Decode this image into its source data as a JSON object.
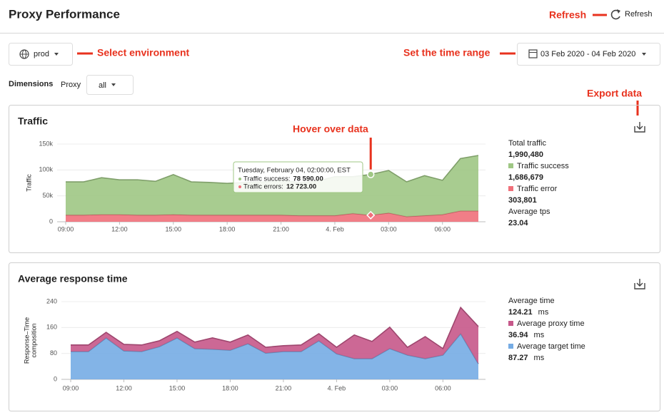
{
  "header": {
    "title": "Proxy Performance",
    "refresh": "Refresh"
  },
  "controls": {
    "environment": "prod",
    "date_range": "03 Feb 2020 - 04 Feb 2020",
    "dimensions_label": "Dimensions",
    "proxy_label": "Proxy",
    "proxy_value": "all"
  },
  "annotations": {
    "refresh": "Refresh",
    "environment": "Select environment",
    "time_range": "Set the time range",
    "hover": "Hover over data",
    "export": "Export data"
  },
  "chart_data": [
    {
      "type": "area",
      "title": "Traffic",
      "y_label": [
        "Traffic"
      ],
      "categories": [
        "09:00",
        null,
        null,
        "12:00",
        null,
        null,
        "15:00",
        null,
        null,
        "18:00",
        null,
        null,
        "21:00",
        null,
        null,
        "4. Feb",
        null,
        null,
        "03:00",
        null,
        null,
        "06:00",
        null,
        null
      ],
      "series": [
        {
          "name": "Traffic success",
          "color": "#9fc784",
          "values": [
            64000,
            64000,
            71000,
            67000,
            68000,
            65000,
            77000,
            64000,
            63000,
            61000,
            63000,
            64000,
            67000,
            64000,
            66000,
            75000,
            71000,
            78590,
            82000,
            67000,
            77000,
            66000,
            101000,
            107000
          ],
          "total": "1,686,679"
        },
        {
          "name": "Traffic error",
          "color": "#f0707a",
          "values": [
            13000,
            13000,
            14000,
            14000,
            13000,
            13000,
            14000,
            13000,
            13000,
            13000,
            13000,
            13000,
            13000,
            12000,
            12000,
            12000,
            16000,
            12723,
            17000,
            10000,
            12000,
            14000,
            21000,
            21000
          ],
          "total": "303,801"
        }
      ],
      "summary": {
        "label": "Total traffic",
        "value": "1,990,480"
      },
      "extra": {
        "label": "Average tps",
        "value": "23.04"
      },
      "tooltip": {
        "title": "Tuesday, February 04, 02:00:00, EST",
        "rows": [
          {
            "name": "Traffic success:",
            "value": "78 590.00"
          },
          {
            "name": "Traffic errors:",
            "value": "12 723.00"
          }
        ]
      },
      "ylim": [
        0,
        150000
      ],
      "yticks": [
        0,
        {
          "value": 50000,
          "label": "50k"
        },
        {
          "value": 100000,
          "label": "100k"
        },
        {
          "value": 150000,
          "label": "150k"
        }
      ],
      "grid": true
    },
    {
      "type": "area",
      "title": "Average response time",
      "y_label": [
        "Response–Time",
        "composition"
      ],
      "categories": [
        "09:00",
        null,
        null,
        "12:00",
        null,
        null,
        "15:00",
        null,
        null,
        "18:00",
        null,
        null,
        "21:00",
        null,
        null,
        "4. Feb",
        null,
        null,
        "03:00",
        null,
        null,
        "06:00",
        null,
        null
      ],
      "series": [
        {
          "name": "Average proxy time",
          "color": "#c6588a",
          "values": [
            20,
            20,
            17,
            20,
            20,
            18,
            20,
            20,
            35,
            25,
            27,
            18,
            18,
            20,
            22,
            20,
            73,
            53,
            66,
            24,
            68,
            20,
            81,
            115
          ],
          "total": "36.94",
          "unit": "ms"
        },
        {
          "name": "Average target time",
          "color": "#76ace4",
          "values": [
            86,
            86,
            128,
            88,
            86,
            101,
            128,
            95,
            93,
            90,
            110,
            81,
            86,
            86,
            119,
            79,
            64,
            64,
            95,
            75,
            64,
            75,
            141,
            48
          ],
          "total": "87.27",
          "unit": "ms"
        }
      ],
      "summary": {
        "label": "Average time",
        "value": "124.21",
        "unit": "ms"
      },
      "ylim": [
        0,
        240
      ],
      "yticks": [
        0,
        80,
        160,
        240
      ],
      "grid": true
    }
  ]
}
